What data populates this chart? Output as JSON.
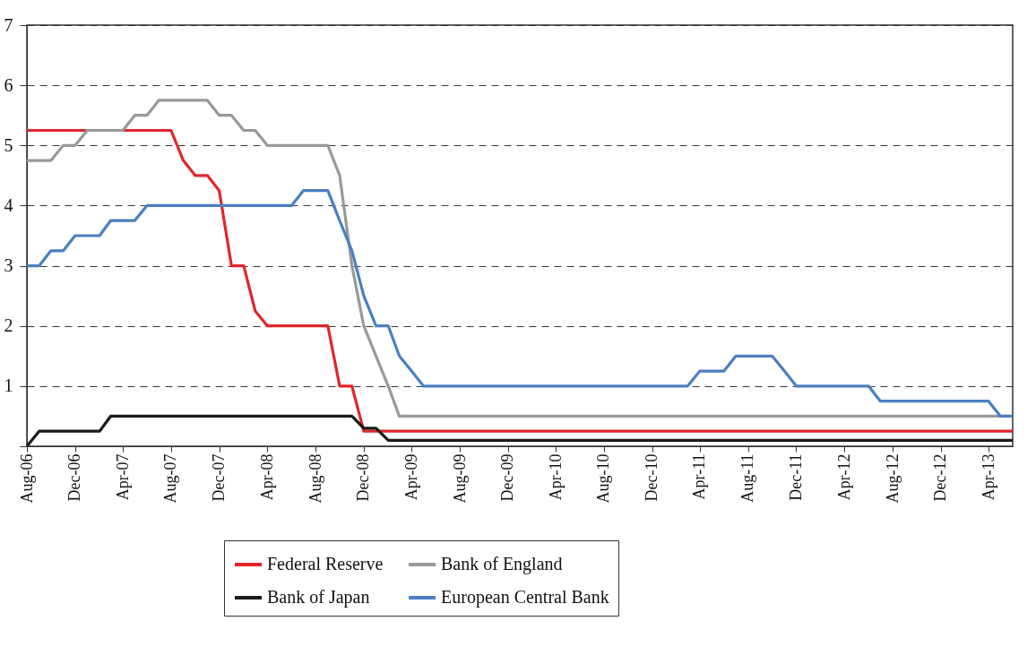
{
  "chart_data": {
    "type": "line",
    "xlim": [
      "2006-08",
      "2013-06"
    ],
    "xticks": [
      {
        "value": "2006-08",
        "label": "Aug-06"
      },
      {
        "value": "2006-12",
        "label": "Dec-06"
      },
      {
        "value": "2007-04",
        "label": "Apr-07"
      },
      {
        "value": "2007-08",
        "label": "Aug-07"
      },
      {
        "value": "2007-12",
        "label": "Dec-07"
      },
      {
        "value": "2008-04",
        "label": "Apr-08"
      },
      {
        "value": "2008-08",
        "label": "Aug-08"
      },
      {
        "value": "2008-12",
        "label": "Dec-08"
      },
      {
        "value": "2009-04",
        "label": "Apr-09"
      },
      {
        "value": "2009-08",
        "label": "Aug-09"
      },
      {
        "value": "2009-12",
        "label": "Dec-09"
      },
      {
        "value": "2010-04",
        "label": "Apr-10"
      },
      {
        "value": "2010-08",
        "label": "Aug-10"
      },
      {
        "value": "2010-12",
        "label": "Dec-10"
      },
      {
        "value": "2011-04",
        "label": "Apr-11"
      },
      {
        "value": "2011-08",
        "label": "Aug-11"
      },
      {
        "value": "2011-12",
        "label": "Dec-11"
      },
      {
        "value": "2012-04",
        "label": "Apr-12"
      },
      {
        "value": "2012-08",
        "label": "Aug-12"
      },
      {
        "value": "2012-12",
        "label": "Dec-12"
      },
      {
        "value": "2013-04",
        "label": "Apr-13"
      }
    ],
    "ylim": [
      0,
      7
    ],
    "yticks": [
      {
        "value": 0,
        "label": null
      },
      1,
      2,
      3,
      4,
      5,
      6,
      7
    ],
    "grid": "y",
    "legend": "bottom",
    "line_style": "solid",
    "marker": "none",
    "series": [
      {
        "name": "Federal Reserve",
        "color": "#e0262b",
        "x": [
          "2006-08",
          "2007-08",
          "2007-09",
          "2007-10",
          "2007-11",
          "2007-12",
          "2008-01",
          "2008-02",
          "2008-03",
          "2008-04",
          "2008-09",
          "2008-10",
          "2008-11",
          "2008-12",
          "2013-06"
        ],
        "values": [
          5.25,
          5.25,
          4.75,
          4.5,
          4.5,
          4.25,
          3.0,
          3.0,
          2.25,
          2.0,
          2.0,
          1.0,
          1.0,
          0.25,
          0.25
        ]
      },
      {
        "name": "Bank of England",
        "color": "#999999",
        "x": [
          "2006-08",
          "2006-10",
          "2006-11",
          "2006-12",
          "2007-01",
          "2007-04",
          "2007-05",
          "2007-06",
          "2007-07",
          "2007-11",
          "2007-12",
          "2008-01",
          "2008-02",
          "2008-03",
          "2008-04",
          "2008-09",
          "2008-10",
          "2008-11",
          "2008-12",
          "2009-01",
          "2009-02",
          "2009-03",
          "2013-06"
        ],
        "values": [
          4.75,
          4.75,
          5.0,
          5.0,
          5.25,
          5.25,
          5.5,
          5.5,
          5.75,
          5.75,
          5.5,
          5.5,
          5.25,
          5.25,
          5.0,
          5.0,
          4.5,
          3.0,
          2.0,
          1.5,
          1.0,
          0.5,
          0.5
        ]
      },
      {
        "name": "Bank of Japan",
        "color": "#1a1a1a",
        "x": [
          "2006-08",
          "2006-09",
          "2007-02",
          "2007-03",
          "2008-11",
          "2008-12",
          "2009-01",
          "2009-02",
          "2013-06"
        ],
        "values": [
          0.0,
          0.25,
          0.25,
          0.5,
          0.5,
          0.3,
          0.3,
          0.1,
          0.1
        ]
      },
      {
        "name": "European Central Bank",
        "color": "#4a7fc1",
        "x": [
          "2006-08",
          "2006-09",
          "2006-10",
          "2006-11",
          "2006-12",
          "2007-02",
          "2007-03",
          "2007-05",
          "2007-06",
          "2008-06",
          "2008-07",
          "2008-09",
          "2008-10",
          "2008-11",
          "2008-12",
          "2009-01",
          "2009-02",
          "2009-03",
          "2009-04",
          "2009-05",
          "2011-03",
          "2011-04",
          "2011-06",
          "2011-07",
          "2011-10",
          "2011-11",
          "2011-12",
          "2012-06",
          "2012-07",
          "2013-04",
          "2013-05",
          "2013-06"
        ],
        "values": [
          3.0,
          3.0,
          3.25,
          3.25,
          3.5,
          3.5,
          3.75,
          3.75,
          4.0,
          4.0,
          4.25,
          4.25,
          3.75,
          3.25,
          2.5,
          2.0,
          2.0,
          1.5,
          1.25,
          1.0,
          1.0,
          1.25,
          1.25,
          1.5,
          1.5,
          1.25,
          1.0,
          1.0,
          0.75,
          0.75,
          0.5,
          0.5
        ]
      }
    ]
  }
}
